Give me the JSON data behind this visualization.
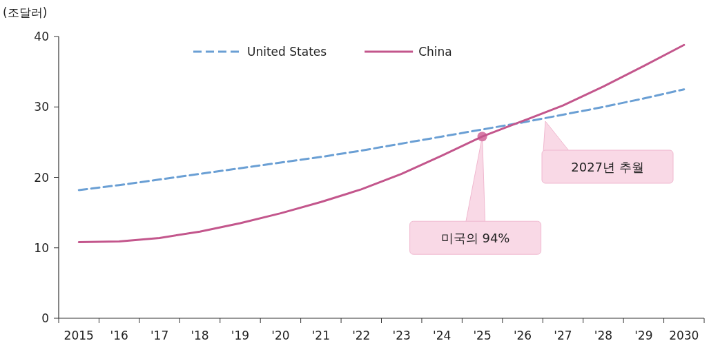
{
  "chart_data": {
    "type": "line",
    "ylabel": "(조달러)",
    "categories": [
      "2015",
      "'16",
      "'17",
      "'18",
      "'19",
      "'20",
      "'21",
      "'22",
      "'23",
      "'24",
      "'25",
      "'26",
      "'27",
      "'28",
      "'29",
      "2030"
    ],
    "series": [
      {
        "name": "United States",
        "color": "#6a9fd4",
        "line_style": "dashed",
        "values": [
          18.2,
          18.9,
          19.7,
          20.5,
          21.3,
          22.1,
          22.9,
          23.8,
          24.8,
          25.8,
          26.8,
          27.8,
          28.9,
          30.0,
          31.2,
          32.5
        ]
      },
      {
        "name": "China",
        "color": "#c3568c",
        "line_style": "solid",
        "values": [
          10.8,
          10.9,
          11.4,
          12.3,
          13.5,
          14.9,
          16.5,
          18.3,
          20.5,
          23.1,
          25.8,
          28.0,
          30.2,
          32.9,
          35.8,
          38.8
        ]
      }
    ],
    "ylim": [
      0,
      40
    ],
    "yticks": [
      0,
      10,
      20,
      30,
      40
    ],
    "grid": false,
    "legend": "top",
    "marker": "none",
    "annotations": [
      {
        "text": "미국의 94%",
        "x": "'25",
        "y": 25.8
      },
      "2027년 추월"
    ]
  }
}
